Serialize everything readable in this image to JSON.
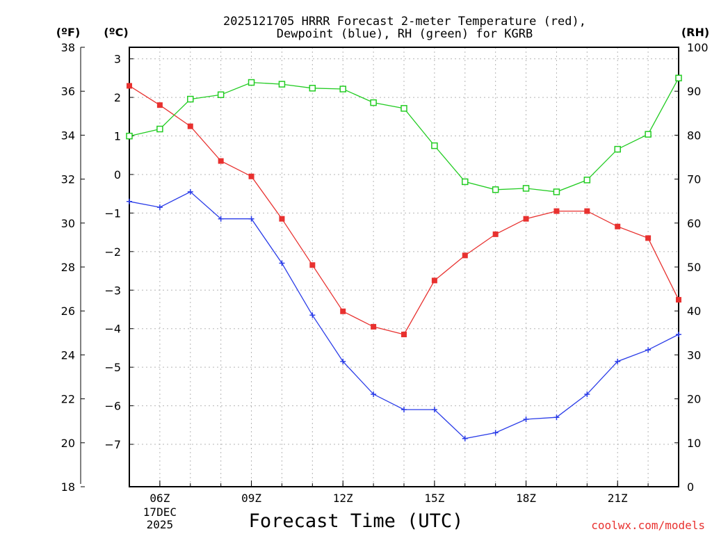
{
  "title": {
    "line1": "2025121705 HRRR Forecast 2-meter Temperature (red),",
    "line2": "Dewpoint (blue), RH (green) for KGRB"
  },
  "units": {
    "fahrenheit": "(ºF)",
    "celsius": "(ºC)",
    "rh": "(RH)"
  },
  "credit": "coolwx.com/models",
  "colors": {
    "temperature": "#e8312f",
    "dewpoint": "#2a3ce8",
    "rh": "#22cc22",
    "frame": "#000000"
  },
  "chart_data": {
    "type": "line",
    "xlabel": "Forecast Time (UTC)",
    "x_hours": [
      5,
      6,
      7,
      8,
      9,
      10,
      11,
      12,
      13,
      14,
      15,
      16,
      17,
      18,
      19,
      20,
      21,
      22,
      23
    ],
    "xlim": [
      5,
      23
    ],
    "x_ticks": [
      {
        "hour": 6,
        "label": "06Z"
      },
      {
        "hour": 9,
        "label": "09Z"
      },
      {
        "hour": 12,
        "label": "12Z"
      },
      {
        "hour": 15,
        "label": "15Z"
      },
      {
        "hour": 18,
        "label": "18Z"
      },
      {
        "hour": 21,
        "label": "21Z"
      }
    ],
    "date_label": [
      "17DEC",
      "2025"
    ],
    "y_celsius": {
      "label": "(ºC)",
      "lim": [
        -8.1,
        3.3
      ],
      "ticks": [
        "3",
        "2",
        "1",
        "0",
        "−1",
        "−2",
        "−3",
        "−4",
        "−5",
        "−6",
        "−7"
      ],
      "tick_values": [
        3,
        2,
        1,
        0,
        -1,
        -2,
        -3,
        -4,
        -5,
        -6,
        -7
      ]
    },
    "y_fahrenheit": {
      "label": "(ºF)",
      "lim": [
        18,
        38
      ],
      "ticks": [
        "38",
        "36",
        "34",
        "32",
        "30",
        "28",
        "26",
        "24",
        "22",
        "20",
        "18"
      ],
      "tick_values": [
        38,
        36,
        34,
        32,
        30,
        28,
        26,
        24,
        22,
        20,
        18
      ]
    },
    "y_rh": {
      "label": "(RH)",
      "lim": [
        0,
        100
      ],
      "ticks": [
        "100",
        "90",
        "80",
        "70",
        "60",
        "50",
        "40",
        "30",
        "20",
        "10",
        "0"
      ],
      "tick_values": [
        100,
        90,
        80,
        70,
        60,
        50,
        40,
        30,
        20,
        10,
        0
      ]
    },
    "series": [
      {
        "name": "Temperature",
        "unit": "°C",
        "axis": "celsius",
        "color": "#e8312f",
        "marker": "filled-square",
        "values": [
          2.3,
          1.8,
          1.25,
          0.35,
          -0.05,
          -1.15,
          -2.35,
          -3.55,
          -3.95,
          -4.15,
          -2.75,
          -2.1,
          -1.55,
          -1.15,
          -0.95,
          -0.95,
          -1.35,
          -1.65,
          -3.25
        ]
      },
      {
        "name": "Dewpoint",
        "unit": "°C",
        "axis": "celsius",
        "color": "#2a3ce8",
        "marker": "plus",
        "values": [
          -0.7,
          -0.85,
          -0.45,
          -1.15,
          -1.15,
          -2.3,
          -3.65,
          -4.85,
          -5.7,
          -6.1,
          -6.1,
          -6.85,
          -6.7,
          -6.35,
          -6.3,
          -5.7,
          -4.85,
          -4.55,
          -4.15
        ]
      },
      {
        "name": "RH",
        "unit": "%",
        "axis": "rh",
        "color": "#22cc22",
        "marker": "open-square",
        "values": [
          79.8,
          81.4,
          88.2,
          89.2,
          92.0,
          91.6,
          90.7,
          90.5,
          87.4,
          86.1,
          77.6,
          69.4,
          67.6,
          67.9,
          67.1,
          69.8,
          76.8,
          80.2,
          93.0
        ]
      }
    ]
  }
}
